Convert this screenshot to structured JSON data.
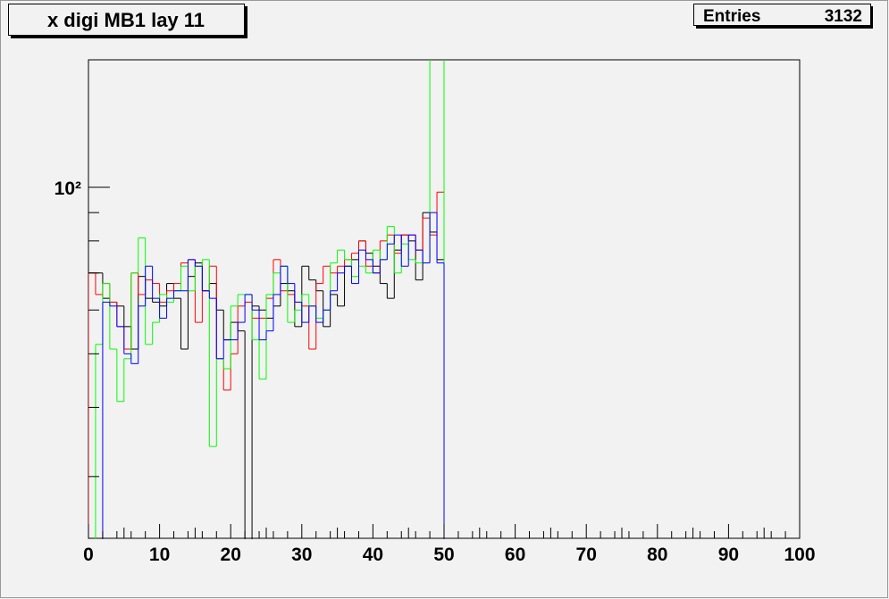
{
  "chart_data": {
    "type": "step-histogram",
    "title": "x digi MB1 lay 11",
    "stats": {
      "label": "Entries",
      "value": "3132"
    },
    "log_y": true,
    "xlim": [
      0,
      100
    ],
    "xticks": [
      0,
      10,
      20,
      30,
      40,
      50,
      60,
      70,
      80,
      90,
      100
    ],
    "xminorticks": [
      2,
      4,
      5,
      6,
      8,
      12,
      14,
      15,
      16,
      18,
      22,
      24,
      25,
      26,
      28,
      32,
      34,
      35,
      36,
      38,
      42,
      44,
      45,
      46,
      48,
      52,
      54,
      55,
      56,
      58,
      62,
      64,
      65,
      66,
      68,
      72,
      74,
      75,
      76,
      78,
      82,
      84,
      85,
      86,
      88,
      92,
      94,
      95,
      96,
      98
    ],
    "ylim": [
      23.2,
      170
    ],
    "yticks": [
      {
        "value": 100,
        "label": "10²"
      }
    ],
    "yminorticks": [
      30,
      40,
      50,
      60,
      70,
      80,
      90
    ],
    "bins": [
      0,
      1,
      2,
      3,
      4,
      5,
      6,
      7,
      8,
      9,
      10,
      11,
      12,
      13,
      14,
      15,
      16,
      17,
      18,
      19,
      20,
      21,
      22,
      23,
      24,
      25,
      26,
      27,
      28,
      29,
      30,
      31,
      32,
      33,
      34,
      35,
      36,
      37,
      38,
      39,
      40,
      41,
      42,
      43,
      44,
      45,
      46,
      47,
      48,
      49,
      50,
      51,
      52,
      53,
      54,
      55,
      56,
      57,
      58,
      59,
      60,
      61,
      62,
      63,
      64,
      65,
      66,
      67,
      68,
      69,
      70,
      71,
      72,
      73,
      74,
      75,
      76,
      77,
      78,
      79,
      80,
      81,
      82,
      83,
      84,
      85,
      86,
      87,
      88,
      89,
      90,
      91,
      92,
      93,
      94,
      95,
      96,
      97,
      98,
      99,
      100
    ],
    "series": [
      {
        "color": "#000000",
        "values": [
          70,
          70,
          63,
          62,
          61,
          56,
          51,
          69,
          63,
          62,
          61,
          67,
          63,
          51,
          69,
          73,
          65,
          67,
          60,
          53,
          57,
          55,
          0,
          61,
          60,
          58,
          61,
          67,
          65,
          56,
          72,
          68,
          65,
          56,
          64,
          61,
          72,
          74,
          80,
          76,
          72,
          67,
          63,
          77,
          82,
          80,
          68,
          90,
          83,
          74,
          0,
          0,
          0,
          0,
          0,
          0,
          0,
          0,
          0,
          0,
          0,
          0,
          0,
          0,
          0,
          0,
          0,
          0,
          0,
          0,
          0,
          0,
          0,
          0,
          0,
          0,
          0,
          0,
          0,
          0,
          0,
          0,
          0,
          0,
          0,
          0,
          0,
          0,
          0,
          0,
          0,
          0,
          0,
          0,
          0,
          0,
          0,
          0,
          0,
          0
        ]
      },
      {
        "color": "#ff0000",
        "values": [
          70,
          64,
          67,
          62,
          56,
          51,
          70,
          64,
          68,
          67,
          62,
          65,
          67,
          73,
          74,
          57,
          65,
          72,
          49,
          43,
          50,
          61,
          62,
          58,
          58,
          63,
          74,
          65,
          64,
          62,
          61,
          51,
          67,
          72,
          70,
          72,
          74,
          76,
          80,
          72,
          70,
          80,
          82,
          76,
          82,
          82,
          77,
          88,
          82,
          98,
          0,
          0,
          0,
          0,
          0,
          0,
          0,
          0,
          0,
          0,
          0,
          0,
          0,
          0,
          0,
          0,
          0,
          0,
          0,
          0,
          0,
          0,
          0,
          0,
          0,
          0,
          0,
          0,
          0,
          0,
          0,
          0,
          0,
          0,
          0,
          0,
          0,
          0,
          0,
          0,
          0,
          0,
          0,
          0,
          0,
          0,
          0,
          0,
          0,
          0
        ]
      },
      {
        "color": "#00ff00",
        "values": [
          0,
          52,
          67,
          51,
          41,
          49,
          70,
          81,
          52,
          57,
          64,
          62,
          65,
          72,
          65,
          72,
          74,
          34,
          49,
          47,
          61,
          64,
          64,
          53,
          45,
          64,
          70,
          72,
          57,
          60,
          64,
          61,
          58,
          60,
          73,
          77,
          74,
          69,
          72,
          70,
          77,
          74,
          85,
          70,
          79,
          74,
          73,
          73,
          200,
          200,
          0,
          0,
          0,
          0,
          0,
          0,
          0,
          0,
          0,
          0,
          0,
          0,
          0,
          0,
          0,
          0,
          0,
          0,
          0,
          0,
          0,
          0,
          0,
          0,
          0,
          0,
          0,
          0,
          0,
          0,
          0,
          0,
          0,
          0,
          0,
          0,
          0,
          0,
          0,
          0,
          0,
          0,
          0,
          0,
          0,
          0,
          0,
          0,
          0,
          0
        ]
      },
      {
        "color": "#0000ff",
        "values": [
          0,
          0,
          62,
          61,
          56,
          50,
          48,
          61,
          72,
          63,
          58,
          63,
          65,
          65,
          74,
          72,
          65,
          63,
          49,
          53,
          53,
          57,
          64,
          60,
          53,
          55,
          64,
          72,
          67,
          62,
          57,
          61,
          57,
          60,
          65,
          70,
          72,
          67,
          77,
          74,
          70,
          74,
          79,
          82,
          72,
          82,
          77,
          73,
          90,
          73,
          0,
          0,
          0,
          0,
          0,
          0,
          0,
          0,
          0,
          0,
          0,
          0,
          0,
          0,
          0,
          0,
          0,
          0,
          0,
          0,
          0,
          0,
          0,
          0,
          0,
          0,
          0,
          0,
          0,
          0,
          0,
          0,
          0,
          0,
          0,
          0,
          0,
          0,
          0,
          0,
          0,
          0,
          0,
          0,
          0,
          0,
          0,
          0,
          0,
          0
        ]
      }
    ]
  }
}
